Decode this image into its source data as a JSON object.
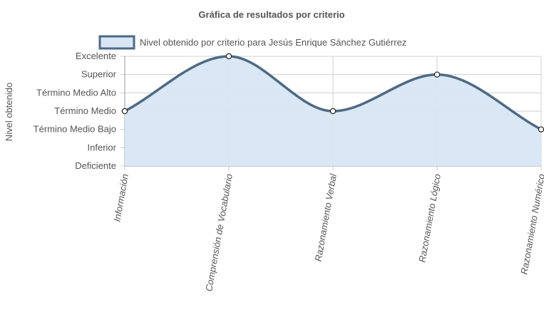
{
  "chart_data": {
    "type": "line",
    "title": "Gráfica de resultados por criterio",
    "legend": {
      "label": "Nivel obtenido por criterio para Jesús Enrique Sánchez Gutiérrez",
      "position": "top"
    },
    "ylabel": "Nivel obtenido",
    "xlabel": "",
    "y_levels": [
      "Deficiente",
      "Inferior",
      "Término Medio Bajo",
      "Término Medio",
      "Término Medio Alto",
      "Superior",
      "Excelente"
    ],
    "ylim": [
      0,
      6
    ],
    "categories": [
      "Información",
      "Comprensión de Vocabulario",
      "Razonamiento Verbal",
      "Razonamiento Lógico",
      "Razonamiento Numérico"
    ],
    "series": [
      {
        "name": "Nivel obtenido por criterio para Jesús Enrique Sánchez Gutiérrez",
        "values": [
          3,
          6,
          3,
          5,
          2
        ],
        "value_labels": [
          "Término Medio",
          "Excelente",
          "Término Medio",
          "Superior",
          "Término Medio Bajo"
        ]
      }
    ],
    "fill": true,
    "smooth": true,
    "grid": true,
    "colors": {
      "line": "#4d6a85",
      "fill": "#d8e6f3",
      "grid": "#cfcfcf",
      "axis": "#999999"
    }
  }
}
